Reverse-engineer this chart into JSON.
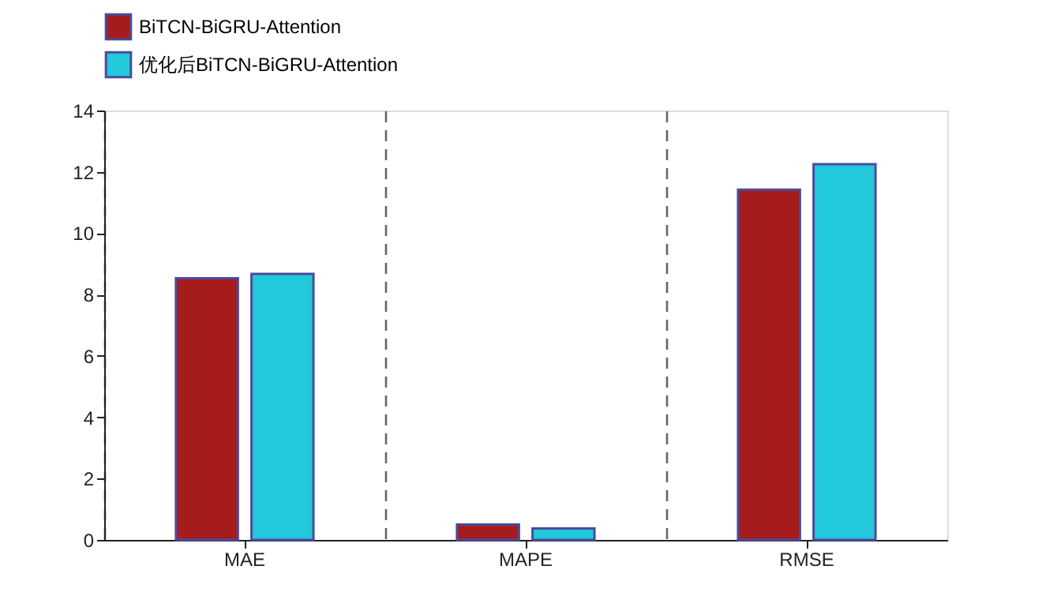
{
  "chart_data": {
    "type": "bar",
    "categories": [
      "MAE",
      "MAPE",
      "RMSE"
    ],
    "ylim": [
      0,
      14
    ],
    "yticks": [
      0,
      2,
      4,
      6,
      8,
      10,
      12,
      14
    ],
    "series": [
      {
        "name": "BiTCN-BiGRU-Attention",
        "color": "#a61c1c",
        "values": [
          8.53,
          0.5,
          11.42
        ]
      },
      {
        "name": "优化后BiTCN-BiGRU-Attention",
        "color": "#22c8dc",
        "values": [
          8.67,
          0.37,
          12.25
        ]
      }
    ],
    "grid": "x",
    "legend": "top"
  }
}
